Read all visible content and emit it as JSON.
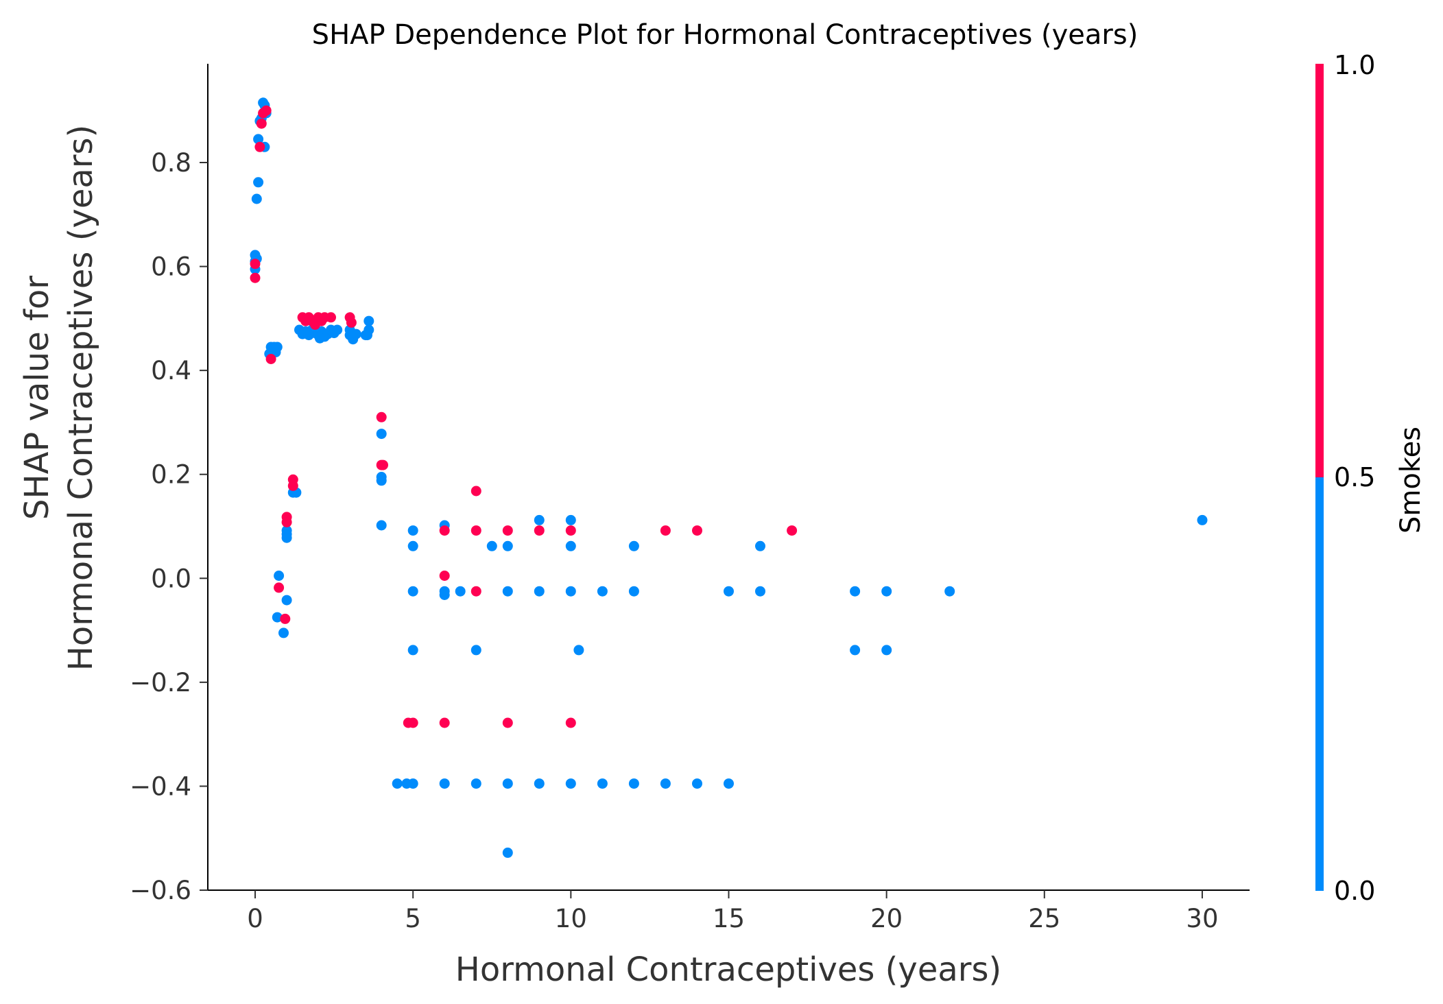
{
  "chart_data": {
    "type": "scatter",
    "title": "SHAP Dependence Plot for Hormonal Contraceptives (years)",
    "xlabel": "Hormonal Contraceptives (years)",
    "ylabel_lines": [
      "SHAP value for",
      "Hormonal Contraceptives (years)"
    ],
    "xlim": [
      -1.5,
      31.5
    ],
    "ylim": [
      -0.6,
      0.99
    ],
    "x_ticks": [
      0,
      5,
      10,
      15,
      20,
      25,
      30
    ],
    "y_ticks": [
      -0.6,
      -0.4,
      -0.2,
      0.0,
      0.2,
      0.4,
      0.6,
      0.8
    ],
    "x_tick_labels": [
      "0",
      "5",
      "10",
      "15",
      "20",
      "25",
      "30"
    ],
    "y_tick_labels": [
      "−0.6",
      "−0.4",
      "−0.2",
      "0.0",
      "0.2",
      "0.4",
      "0.6",
      "0.8"
    ],
    "grid": false,
    "colors": {
      "low": "#008bfb",
      "high": "#ff0052"
    },
    "colorbar": {
      "label": "Smokes",
      "ticks": [
        "0.0",
        "0.5",
        "1.0"
      ]
    },
    "series": [
      {
        "name": "0",
        "points": [
          [
            0.25,
            0.915
          ],
          [
            0.3,
            0.91
          ],
          [
            0.2,
            0.885
          ],
          [
            0.35,
            0.895
          ],
          [
            0.15,
            0.88
          ],
          [
            0.3,
            0.83
          ],
          [
            0.1,
            0.845
          ],
          [
            0.1,
            0.762
          ],
          [
            0.05,
            0.73
          ],
          [
            0.0,
            0.622
          ],
          [
            0.0,
            0.61
          ],
          [
            0.05,
            0.615
          ],
          [
            0.0,
            0.595
          ],
          [
            0.5,
            0.445
          ],
          [
            0.55,
            0.44
          ],
          [
            0.6,
            0.445
          ],
          [
            0.65,
            0.435
          ],
          [
            0.7,
            0.445
          ],
          [
            0.45,
            0.432
          ],
          [
            0.5,
            0.435
          ],
          [
            1.4,
            0.478
          ],
          [
            1.5,
            0.47
          ],
          [
            1.6,
            0.475
          ],
          [
            1.7,
            0.468
          ],
          [
            1.8,
            0.478
          ],
          [
            1.9,
            0.472
          ],
          [
            2.0,
            0.468
          ],
          [
            2.1,
            0.475
          ],
          [
            2.2,
            0.465
          ],
          [
            2.3,
            0.47
          ],
          [
            2.4,
            0.478
          ],
          [
            2.5,
            0.472
          ],
          [
            2.6,
            0.478
          ],
          [
            2.05,
            0.462
          ],
          [
            3.0,
            0.468
          ],
          [
            3.1,
            0.46
          ],
          [
            3.2,
            0.47
          ],
          [
            3.0,
            0.478
          ],
          [
            3.5,
            0.468
          ],
          [
            3.6,
            0.495
          ],
          [
            3.6,
            0.478
          ],
          [
            3.55,
            0.468
          ],
          [
            4.0,
            0.278
          ],
          [
            4.0,
            0.195
          ],
          [
            4.0,
            0.188
          ],
          [
            4.0,
            0.102
          ],
          [
            1.2,
            0.165
          ],
          [
            1.3,
            0.165
          ],
          [
            1.0,
            0.092
          ],
          [
            1.0,
            0.085
          ],
          [
            1.0,
            0.078
          ],
          [
            0.75,
            0.005
          ],
          [
            1.0,
            -0.042
          ],
          [
            0.7,
            -0.075
          ],
          [
            0.9,
            -0.105
          ],
          [
            5.0,
            0.092
          ],
          [
            5.0,
            0.062
          ],
          [
            5.0,
            -0.025
          ],
          [
            5.0,
            -0.138
          ],
          [
            4.5,
            -0.395
          ],
          [
            4.8,
            -0.395
          ],
          [
            5.0,
            -0.395
          ],
          [
            6.0,
            0.102
          ],
          [
            6.0,
            -0.025
          ],
          [
            6.0,
            -0.032
          ],
          [
            6.0,
            -0.395
          ],
          [
            6.5,
            -0.025
          ],
          [
            7.0,
            -0.138
          ],
          [
            7.0,
            -0.395
          ],
          [
            7.5,
            0.062
          ],
          [
            8.0,
            0.062
          ],
          [
            8.0,
            -0.025
          ],
          [
            8.0,
            -0.395
          ],
          [
            8.0,
            -0.528
          ],
          [
            9.0,
            0.112
          ],
          [
            9.0,
            -0.025
          ],
          [
            9.0,
            -0.395
          ],
          [
            10.0,
            0.112
          ],
          [
            10.0,
            0.062
          ],
          [
            10.0,
            -0.025
          ],
          [
            10.0,
            -0.395
          ],
          [
            10.25,
            -0.138
          ],
          [
            11.0,
            -0.025
          ],
          [
            11.0,
            -0.395
          ],
          [
            12.0,
            0.062
          ],
          [
            12.0,
            -0.025
          ],
          [
            12.0,
            -0.395
          ],
          [
            13.0,
            -0.395
          ],
          [
            14.0,
            -0.395
          ],
          [
            15.0,
            -0.025
          ],
          [
            15.0,
            -0.395
          ],
          [
            16.0,
            0.062
          ],
          [
            16.0,
            -0.025
          ],
          [
            19.0,
            -0.025
          ],
          [
            19.0,
            -0.138
          ],
          [
            20.0,
            -0.025
          ],
          [
            20.0,
            -0.138
          ],
          [
            22.0,
            -0.025
          ],
          [
            30.0,
            0.112
          ]
        ]
      },
      {
        "name": "1",
        "points": [
          [
            0.2,
            0.875
          ],
          [
            0.25,
            0.895
          ],
          [
            0.35,
            0.9
          ],
          [
            0.15,
            0.83
          ],
          [
            0.0,
            0.605
          ],
          [
            0.0,
            0.578
          ],
          [
            0.5,
            0.422
          ],
          [
            1.5,
            0.502
          ],
          [
            1.6,
            0.495
          ],
          [
            1.7,
            0.502
          ],
          [
            1.8,
            0.495
          ],
          [
            1.9,
            0.488
          ],
          [
            2.0,
            0.502
          ],
          [
            2.1,
            0.495
          ],
          [
            2.2,
            0.502
          ],
          [
            2.4,
            0.502
          ],
          [
            3.0,
            0.502
          ],
          [
            3.05,
            0.492
          ],
          [
            4.0,
            0.31
          ],
          [
            4.0,
            0.218
          ],
          [
            4.05,
            0.218
          ],
          [
            1.2,
            0.19
          ],
          [
            1.2,
            0.178
          ],
          [
            1.0,
            0.118
          ],
          [
            1.0,
            0.108
          ],
          [
            0.75,
            -0.018
          ],
          [
            0.95,
            -0.078
          ],
          [
            6.0,
            0.092
          ],
          [
            6.0,
            0.005
          ],
          [
            7.0,
            0.168
          ],
          [
            7.0,
            0.092
          ],
          [
            7.0,
            -0.025
          ],
          [
            8.0,
            0.092
          ],
          [
            9.0,
            0.092
          ],
          [
            10.0,
            0.092
          ],
          [
            13.0,
            0.092
          ],
          [
            14.0,
            0.092
          ],
          [
            17.0,
            0.092
          ],
          [
            4.85,
            -0.278
          ],
          [
            5.0,
            -0.278
          ],
          [
            6.0,
            -0.278
          ],
          [
            8.0,
            -0.278
          ],
          [
            10.0,
            -0.278
          ]
        ]
      }
    ]
  }
}
